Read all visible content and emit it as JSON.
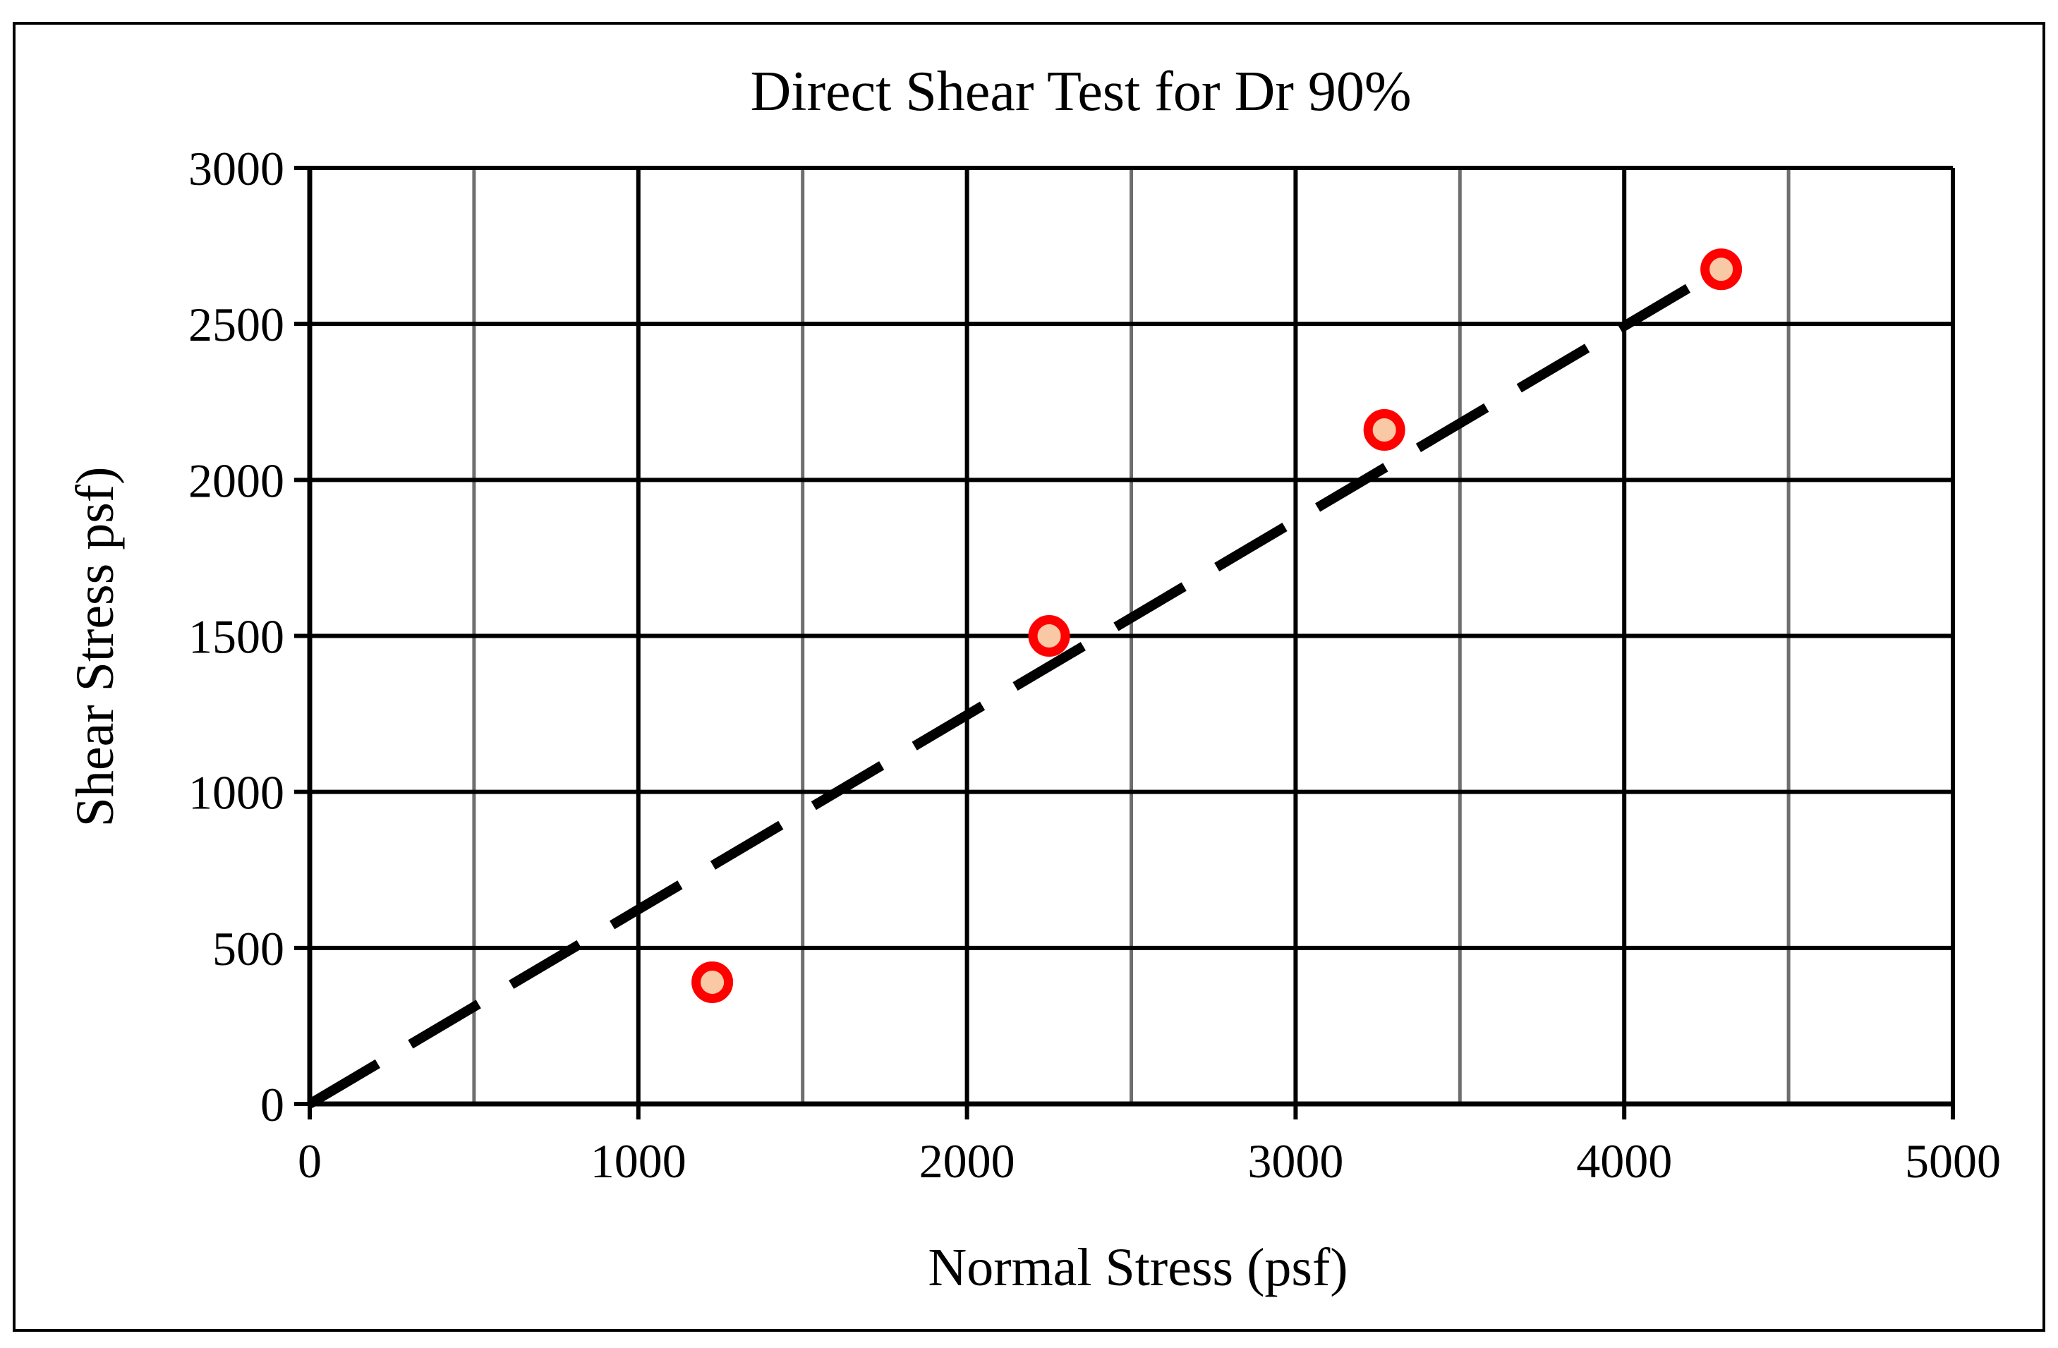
{
  "chart_data": {
    "type": "scatter",
    "title": "Direct Shear Test for Dr 90%",
    "xlabel": "Normal Stress (psf)",
    "ylabel": "Shear Stress psf)",
    "xlim": [
      0,
      5000
    ],
    "ylim": [
      0,
      3000
    ],
    "x_major_ticks": [
      0,
      1000,
      2000,
      3000,
      4000,
      5000
    ],
    "x_minor_gridlines": [
      500,
      1500,
      2500,
      3500,
      4500
    ],
    "y_ticks": [
      0,
      500,
      1000,
      1500,
      2000,
      2500,
      3000
    ],
    "x_tick_labels": [
      "0",
      "1000",
      "2000",
      "3000",
      "4000",
      "5000"
    ],
    "y_tick_labels": [
      "0",
      "500",
      "1000",
      "1500",
      "2000",
      "2500",
      "3000"
    ],
    "grid": true,
    "legend": "none",
    "series": [
      {
        "kind": "points",
        "x": [
          1225,
          2250,
          3270,
          4295
        ],
        "y": [
          390,
          1500,
          2160,
          2675
        ],
        "marker_edge_color": "#ff0000",
        "marker_fill_color": "#f9c8a4"
      },
      {
        "kind": "trendline",
        "x": [
          0,
          4300
        ],
        "y": [
          0,
          2680
        ],
        "color": "#000000",
        "style": "dashed"
      }
    ]
  }
}
